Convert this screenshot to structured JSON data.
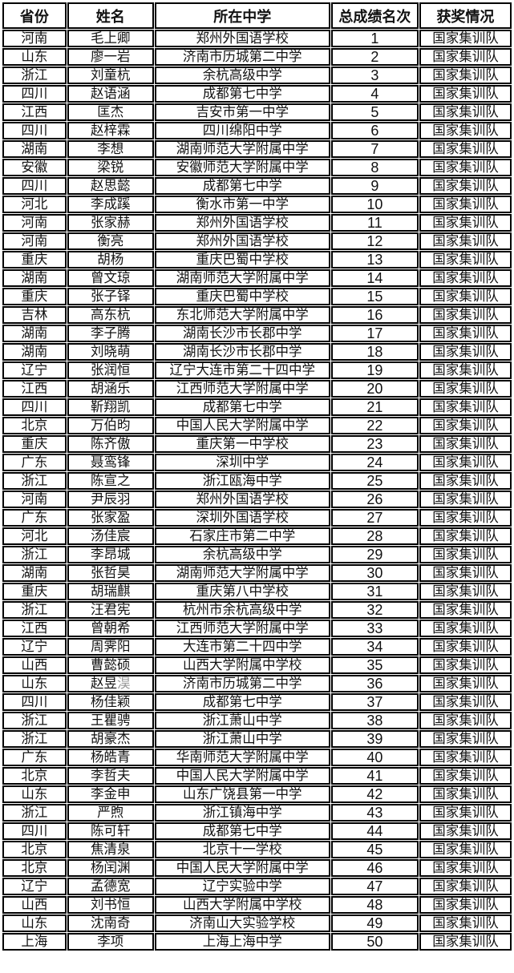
{
  "page": {
    "background": "#ffffff",
    "border_color": "#000000",
    "text_color": "#111111",
    "gray_char_color": "#9a9a9a"
  },
  "table": {
    "columns": [
      "省份",
      "姓名",
      "所在中学",
      "总成绩名次",
      "获奖情况"
    ],
    "rows": [
      {
        "province": "河南",
        "name": "毛上卿",
        "school": "郑州外国语学校",
        "rank": "1",
        "award": "国家集训队"
      },
      {
        "province": "山东",
        "name": "廖一岩",
        "school": "济南市历城第二中学",
        "rank": "2",
        "award": "国家集训队"
      },
      {
        "province": "浙江",
        "name": "刘童杭",
        "school": "余杭高级中学",
        "rank": "3",
        "award": "国家集训队"
      },
      {
        "province": "四川",
        "name": "赵语涵",
        "school": "成都第七中学",
        "rank": "4",
        "award": "国家集训队"
      },
      {
        "province": "江西",
        "name": "匡杰",
        "school": "吉安市第一中学",
        "rank": "5",
        "award": "国家集训队"
      },
      {
        "province": "四川",
        "name": "赵梓霖",
        "school": "四川绵阳中学",
        "rank": "6",
        "award": "国家集训队"
      },
      {
        "province": "湖南",
        "name": "李想",
        "school": "湖南师范大学附属中学",
        "rank": "7",
        "award": "国家集训队"
      },
      {
        "province": "安徽",
        "name": "梁锐",
        "school": "安徽师范大学附属中学",
        "rank": "8",
        "award": "国家集训队"
      },
      {
        "province": "四川",
        "name": "赵思懿",
        "school": "成都第七中学",
        "rank": "9",
        "award": "国家集训队"
      },
      {
        "province": "河北",
        "name": "李成蹊",
        "school": "衡水市第一中学",
        "rank": "10",
        "award": "国家集训队"
      },
      {
        "province": "河南",
        "name": "张家赫",
        "school": "郑州外国语学校",
        "rank": "11",
        "award": "国家集训队"
      },
      {
        "province": "河南",
        "name": "衡亮",
        "school": "郑州外国语学校",
        "rank": "12",
        "award": "国家集训队"
      },
      {
        "province": "重庆",
        "name": "胡杨",
        "school": "重庆巴蜀中学校",
        "rank": "13",
        "award": "国家集训队"
      },
      {
        "province": "湖南",
        "name": "曾文琼",
        "school": "湖南师范大学附属中学",
        "rank": "14",
        "award": "国家集训队"
      },
      {
        "province": "重庆",
        "name": "张子铎",
        "school": "重庆巴蜀中学校",
        "rank": "15",
        "award": "国家集训队"
      },
      {
        "province": "吉林",
        "name": "高东杭",
        "school": "东北师范大学附属中学",
        "rank": "16",
        "award": "国家集训队"
      },
      {
        "province": "湖南",
        "name": "李子腾",
        "school": "湖南长沙市长郡中学",
        "rank": "17",
        "award": "国家集训队"
      },
      {
        "province": "湖南",
        "name": "刘晓萌",
        "school": "湖南长沙市长郡中学",
        "rank": "18",
        "award": "国家集训队"
      },
      {
        "province": "辽宁",
        "name": "张润恒",
        "school": "辽宁大连市第二十四中学",
        "rank": "19",
        "award": "国家集训队"
      },
      {
        "province": "江西",
        "name": "胡涵乐",
        "school": "江西师范大学附属中学",
        "rank": "20",
        "award": "国家集训队"
      },
      {
        "province": "四川",
        "name": "靳翔凯",
        "school": "成都第七中学",
        "rank": "21",
        "award": "国家集训队"
      },
      {
        "province": "北京",
        "name": "万伯昀",
        "school": "中国人民大学附属中学",
        "rank": "22",
        "award": "国家集训队"
      },
      {
        "province": "重庆",
        "name": "陈齐傲",
        "school": "重庆第一中学校",
        "rank": "23",
        "award": "国家集训队"
      },
      {
        "province": "广东",
        "name": "聂鸾锋",
        "school": "深圳中学",
        "rank": "24",
        "award": "国家集训队"
      },
      {
        "province": "浙江",
        "name": "陈宣之",
        "school": "浙江瓯海中学",
        "rank": "25",
        "award": "国家集训队"
      },
      {
        "province": "河南",
        "name": "尹辰羽",
        "school": "郑州外国语学校",
        "rank": "26",
        "award": "国家集训队"
      },
      {
        "province": "广东",
        "name": "张家盈",
        "school": "深圳外国语学校",
        "rank": "27",
        "award": "国家集训队"
      },
      {
        "province": "河北",
        "name": "汤佳宸",
        "school": "石家庄市第二中学",
        "rank": "28",
        "award": "国家集训队"
      },
      {
        "province": "浙江",
        "name": "李昂城",
        "school": "余杭高级中学",
        "rank": "29",
        "award": "国家集训队"
      },
      {
        "province": "湖南",
        "name": "张哲昊",
        "school": "湖南师范大学附属中学",
        "rank": "30",
        "award": "国家集训队"
      },
      {
        "province": "重庆",
        "name": "胡瑞麒",
        "school": "重庆第八中学校",
        "rank": "31",
        "award": "国家集训队"
      },
      {
        "province": "浙江",
        "name": "汪君宪",
        "school": "杭州市余杭高级中学",
        "rank": "32",
        "award": "国家集训队"
      },
      {
        "province": "江西",
        "name": "曾朝希",
        "school": "江西师范大学附属中学",
        "rank": "33",
        "award": "国家集训队"
      },
      {
        "province": "辽宁",
        "name": "周霁阳",
        "school": "大连市第二十四中学",
        "rank": "34",
        "award": "国家集训队"
      },
      {
        "province": "山西",
        "name": "曹懿硕",
        "school": "山西大学附属中学校",
        "rank": "35",
        "award": "国家集训队"
      },
      {
        "province": "山东",
        "name": "赵昱",
        "name_gray_suffix": "淏",
        "school": "济南市历城第二中学",
        "rank": "36",
        "award": "国家集训队"
      },
      {
        "province": "四川",
        "name": "杨佳颖",
        "school": "成都第七中学",
        "rank": "37",
        "award": "国家集训队"
      },
      {
        "province": "浙江",
        "name": "王瞿骋",
        "school": "浙江萧山中学",
        "rank": "38",
        "award": "国家集训队"
      },
      {
        "province": "浙江",
        "name": "胡豪杰",
        "school": "浙江萧山中学",
        "rank": "39",
        "award": "国家集训队"
      },
      {
        "province": "广东",
        "name": "杨皓青",
        "school": "华南师范大学附属中学",
        "rank": "40",
        "award": "国家集训队"
      },
      {
        "province": "北京",
        "name": "李哲夫",
        "school": "中国人民大学附属中学",
        "rank": "41",
        "award": "国家集训队"
      },
      {
        "province": "山东",
        "name": "李金申",
        "school": "山东广饶县第一中学",
        "rank": "42",
        "award": "国家集训队"
      },
      {
        "province": "浙江",
        "name": "严煦",
        "school": "浙江镇海中学",
        "rank": "43",
        "award": "国家集训队"
      },
      {
        "province": "四川",
        "name": "陈可轩",
        "school": "成都第七中学",
        "rank": "44",
        "award": "国家集训队"
      },
      {
        "province": "北京",
        "name": "焦清泉",
        "school": "北京十一学校",
        "rank": "45",
        "award": "国家集训队"
      },
      {
        "province": "北京",
        "name": "杨闰渊",
        "school": "中国人民大学附属中学",
        "rank": "46",
        "award": "国家集训队"
      },
      {
        "province": "辽宁",
        "name": "孟德宽",
        "school": "辽宁实验中学",
        "rank": "47",
        "award": "国家集训队"
      },
      {
        "province": "山西",
        "name": "刘书恒",
        "school": "山西大学附属中学校",
        "rank": "48",
        "award": "国家集训队"
      },
      {
        "province": "山东",
        "name": "沈南奇",
        "school": "济南山大实验学校",
        "rank": "49",
        "award": "国家集训队"
      },
      {
        "province": "上海",
        "name": "李项",
        "school": "上海上海中学",
        "rank": "50",
        "award": "国家集训队"
      }
    ]
  }
}
